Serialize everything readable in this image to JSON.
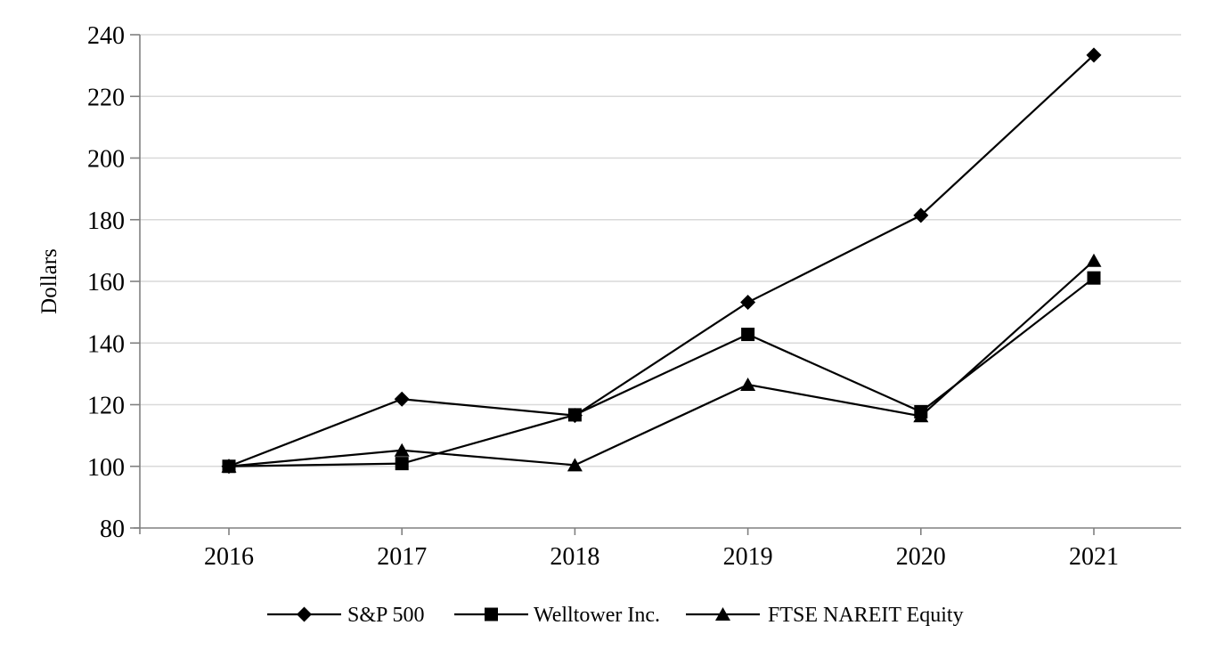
{
  "page": {
    "background_color": "#ffffff"
  },
  "chart_data": {
    "type": "line",
    "title": "",
    "xlabel": "",
    "ylabel": "Dollars",
    "categories": [
      "2016",
      "2017",
      "2018",
      "2019",
      "2020",
      "2021"
    ],
    "series": [
      {
        "name": "S&P 500",
        "marker": "diamond",
        "color": "#000000",
        "values": [
          100.0,
          121.8,
          116.5,
          153.2,
          181.4,
          233.4
        ]
      },
      {
        "name": "Welltower Inc.",
        "marker": "square",
        "color": "#000000",
        "values": [
          100.0,
          100.9,
          116.7,
          142.8,
          117.7,
          161.1
        ]
      },
      {
        "name": "FTSE NAREIT Equity",
        "marker": "triangle",
        "color": "#000000",
        "values": [
          100.0,
          105.2,
          100.4,
          126.5,
          116.3,
          166.7
        ]
      }
    ],
    "y_axis": {
      "min": 80,
      "max": 240,
      "tick_step": 20,
      "tick_labels": [
        "80",
        "100",
        "120",
        "140",
        "160",
        "180",
        "200",
        "220",
        "240"
      ]
    },
    "x_axis": {
      "tick_labels": [
        "2016",
        "2017",
        "2018",
        "2019",
        "2020",
        "2021"
      ]
    },
    "grid": true,
    "legend_position": "bottom",
    "legend_labels": [
      "S&P 500",
      "Welltower Inc.",
      "FTSE NAREIT Equity"
    ],
    "colors": {
      "gridline": "#d9d9d9",
      "axis": "#808080",
      "text": "#000000",
      "line": "#000000"
    }
  }
}
